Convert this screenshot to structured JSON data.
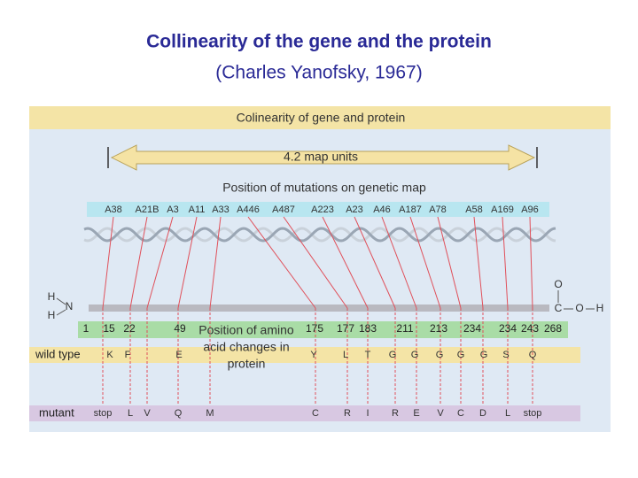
{
  "title": "Collinearity of the gene and the protein",
  "subtitle": "(Charles Yanofsky, 1967)",
  "figure": {
    "header": "Colinearity of gene and protein",
    "map_units": "4.2 map units",
    "mutations_label": "Position of mutations on genetic map",
    "mutations": [
      "A38",
      "A21B",
      "A3",
      "A11",
      "A33",
      "A446",
      "A487",
      "A223",
      "A23",
      "A46",
      "A187",
      "A78",
      "A58",
      "A169",
      "A96"
    ],
    "amino_positions": [
      "1",
      "15",
      "22",
      "49",
      "175",
      "177",
      "183",
      "211",
      "213",
      "234",
      "234",
      "243",
      "268"
    ],
    "amino_label": [
      "Position of amino",
      "acid changes in",
      "protein"
    ],
    "wild_type_label": "wild type",
    "wild_type": [
      "K",
      "F",
      "E",
      "Y",
      "L",
      "T",
      "G",
      "G",
      "G",
      "G",
      "G",
      "S",
      "Q"
    ],
    "mutant_label": "mutant",
    "mutant": [
      "stop",
      "L",
      "V",
      "Q",
      "M",
      "C",
      "R",
      "I",
      "R",
      "E",
      "V",
      "C",
      "D",
      "L",
      "stop"
    ],
    "n_terminus": [
      "H",
      "N",
      "H"
    ],
    "c_terminus": [
      "O",
      "C",
      "O",
      "H"
    ]
  }
}
